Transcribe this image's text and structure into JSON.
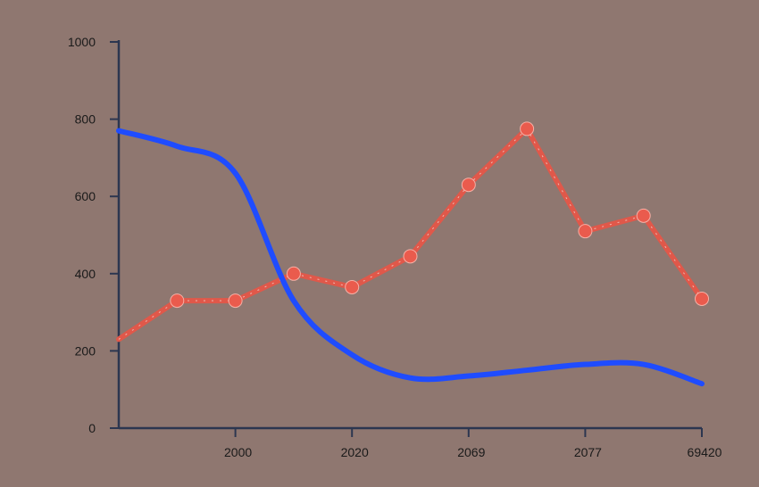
{
  "chart_data": {
    "type": "line",
    "title": "",
    "xlabel": "",
    "ylabel": "",
    "ylim": [
      0,
      1000
    ],
    "y_ticks": [
      0,
      200,
      400,
      600,
      800,
      1000
    ],
    "x_tick_labels": [
      "2000",
      "2020",
      "2069",
      "2077",
      "69420"
    ],
    "grid": false,
    "legend": "none",
    "series": [
      {
        "color": "#e0584a",
        "style": "line-with-markers",
        "x_index": [
          0,
          1,
          2,
          3,
          4,
          5,
          6,
          7,
          8,
          9,
          10
        ],
        "values": [
          230,
          330,
          330,
          400,
          365,
          445,
          630,
          775,
          510,
          550,
          335
        ]
      },
      {
        "color": "#1f4cff",
        "style": "smooth-line",
        "x_index": [
          0,
          1,
          2,
          3,
          4,
          5,
          6,
          7,
          8,
          9,
          10
        ],
        "values": [
          770,
          730,
          660,
          330,
          190,
          130,
          135,
          150,
          165,
          165,
          115
        ]
      }
    ]
  }
}
